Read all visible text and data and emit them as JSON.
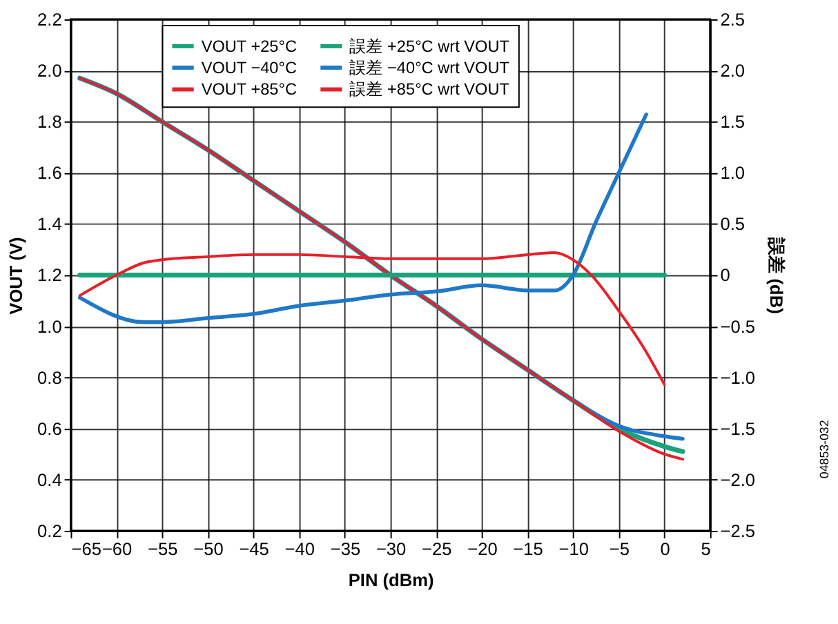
{
  "chart_data": {
    "type": "line",
    "xlabel": "PIN (dBm)",
    "ylabel": "VOUT (V)",
    "y2label": "誤差 (dB)",
    "x": [
      -64,
      -60,
      -55,
      -50,
      -45,
      -40,
      -35,
      -30,
      -25,
      -20,
      -15,
      -10,
      -5,
      0,
      2
    ],
    "xlim": [
      -65,
      5
    ],
    "xticks": [
      -65,
      -60,
      -55,
      -50,
      -45,
      -40,
      -35,
      -30,
      -25,
      -20,
      -15,
      -10,
      -5,
      0,
      5
    ],
    "ylim": [
      0.2,
      2.2
    ],
    "yticks": [
      0.2,
      0.4,
      0.6,
      0.8,
      {
        "value": 1,
        "label": "1.0"
      },
      1.2,
      1.4,
      1.6,
      1.8,
      {
        "value": 2,
        "label": "2.0"
      },
      2.2
    ],
    "y2lim": [
      -2.5,
      2.5
    ],
    "y2ticks": [
      -2.5,
      {
        "value": -2,
        "label": "−2.0"
      },
      -1.5,
      {
        "value": -1,
        "label": "−1.0"
      },
      -0.5,
      {
        "value": 0,
        "label": "0"
      },
      0.5,
      {
        "value": 1,
        "label": "1.0"
      },
      1.5,
      {
        "value": 2,
        "label": "2.0"
      },
      2.5
    ],
    "grid": true,
    "legend": "top",
    "marker": "none",
    "line_style": "solid",
    "annotations": [
      "04853-032"
    ],
    "series": [
      {
        "name": "VOUT +25°C",
        "color": "#1aa37a",
        "values": [
          1.97,
          1.91,
          1.8,
          1.69,
          1.57,
          1.45,
          1.33,
          1.2,
          1.08,
          0.95,
          0.83,
          0.71,
          0.6,
          0.53,
          0.51
        ]
      },
      {
        "name": "VOUT −40°C",
        "color": "#1f78c8",
        "values": [
          1.97,
          1.91,
          1.8,
          1.69,
          1.57,
          1.45,
          1.33,
          1.2,
          1.08,
          0.95,
          0.83,
          0.71,
          0.61,
          0.57,
          0.56
        ]
      },
      {
        "name": "VOUT +85°C",
        "color": "#e8202a",
        "values": [
          1.97,
          1.91,
          1.8,
          1.69,
          1.57,
          1.45,
          1.33,
          1.2,
          1.08,
          0.95,
          0.83,
          0.71,
          0.59,
          0.5,
          0.48
        ]
      },
      {
        "name": "誤差 +25°C wrt VOUT",
        "color": "#1aa37a",
        "axis": "y2",
        "x": [
          -64,
          0
        ],
        "values": [
          0,
          0
        ]
      },
      {
        "name": "誤差 −40°C wrt VOUT",
        "color": "#1f78c8",
        "axis": "y2",
        "x": [
          -64,
          -57,
          -55,
          -50,
          -45,
          -40,
          -35,
          -30,
          -25,
          -20,
          -15,
          -12,
          -10,
          -7.5,
          -5,
          -2
        ],
        "values": [
          -0.22,
          -0.46,
          -0.46,
          -0.42,
          -0.38,
          -0.3,
          -0.25,
          -0.19,
          -0.16,
          -0.1,
          -0.15,
          -0.15,
          0,
          0.52,
          1.0,
          1.57
        ]
      },
      {
        "name": "誤差 +85°C wrt VOUT",
        "color": "#e8202a",
        "axis": "y2",
        "x": [
          -64,
          -60,
          -57,
          -55,
          -50,
          -45,
          -40,
          -35,
          -30,
          -25,
          -20,
          -15,
          -12,
          -10,
          -8,
          -5,
          -2,
          0
        ],
        "values": [
          -0.2,
          0,
          0.12,
          0.15,
          0.18,
          0.2,
          0.2,
          0.18,
          0.16,
          0.16,
          0.16,
          0.2,
          0.22,
          0.15,
          0,
          -0.35,
          -0.75,
          -1.07
        ]
      }
    ]
  }
}
